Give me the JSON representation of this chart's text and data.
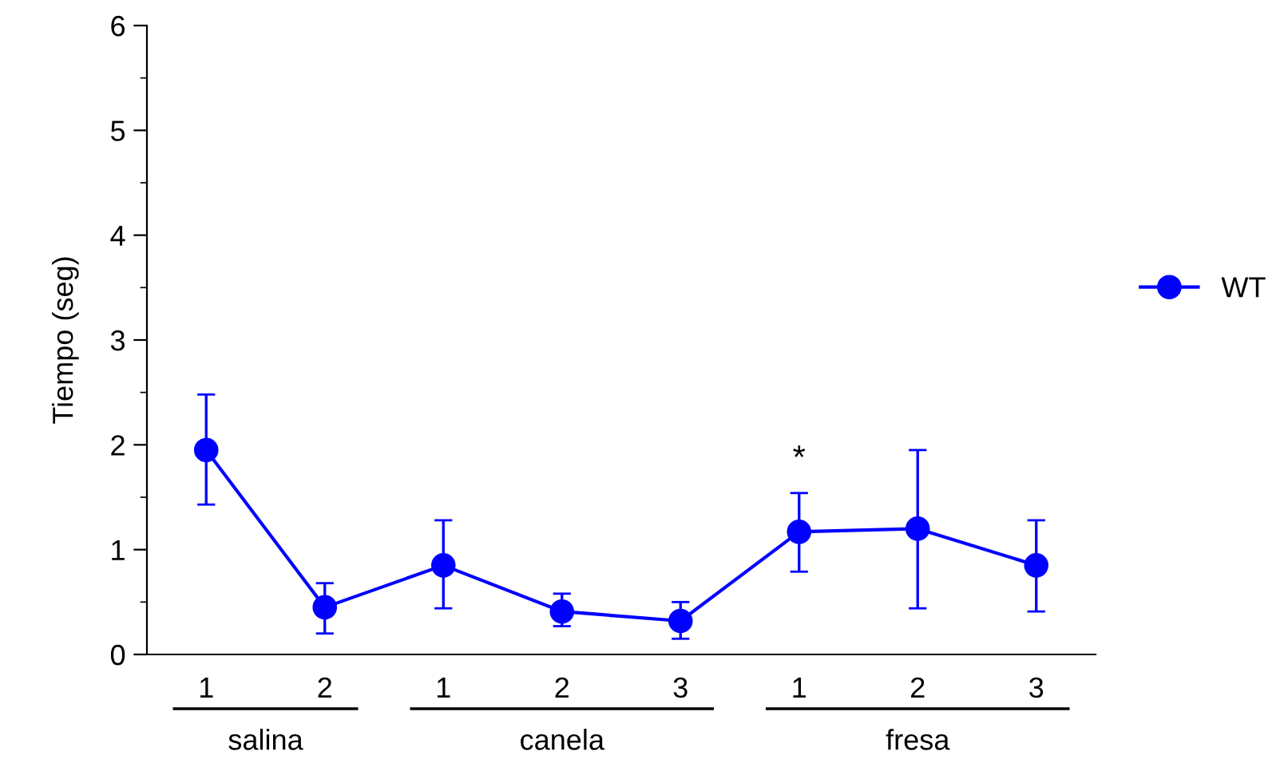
{
  "chart_data": {
    "type": "line",
    "ylabel": "Tiempo (seg)",
    "categories": [
      "1",
      "2",
      "1",
      "2",
      "3",
      "1",
      "2",
      "3"
    ],
    "ylim": [
      0,
      6
    ],
    "yticks": [
      0,
      1,
      2,
      3,
      4,
      5,
      6
    ],
    "series": [
      {
        "name": "WT",
        "color": "#0000ff",
        "values": [
          1.95,
          0.45,
          0.85,
          0.41,
          0.32,
          1.17,
          1.2,
          0.85
        ],
        "errors": [
          [
            1.43,
            2.48
          ],
          [
            0.2,
            0.68
          ],
          [
            0.44,
            1.28
          ],
          [
            0.27,
            0.58
          ],
          [
            0.15,
            0.5
          ],
          [
            0.79,
            1.54
          ],
          [
            0.44,
            1.95
          ],
          [
            0.41,
            1.28
          ]
        ]
      }
    ],
    "marker": "circle",
    "line_style": "solid",
    "grid": false,
    "legend": "right",
    "annotations": [
      "salina",
      "canela",
      "fresa",
      "*"
    ]
  }
}
